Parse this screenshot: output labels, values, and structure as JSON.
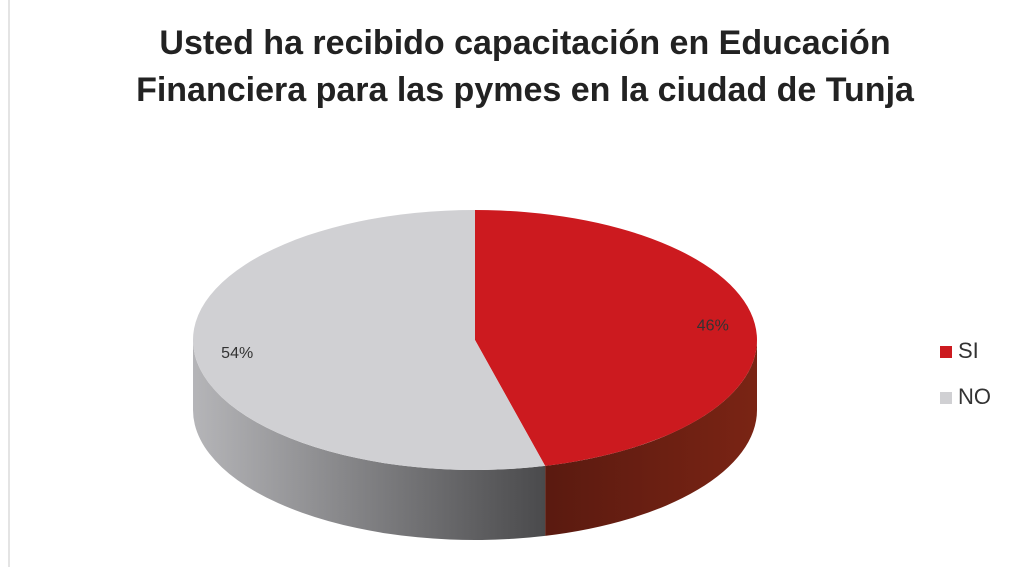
{
  "chart_data": {
    "type": "pie3d",
    "title": "Usted ha recibido capacitación en Educación Financiera para las pymes en la ciudad de Tunja",
    "categories": [
      "SI",
      "NO"
    ],
    "values": [
      46,
      54
    ],
    "value_labels": [
      "46%",
      "54%"
    ],
    "colors": [
      "#cc1a1f",
      "#d0d0d3"
    ],
    "legend": "right"
  }
}
